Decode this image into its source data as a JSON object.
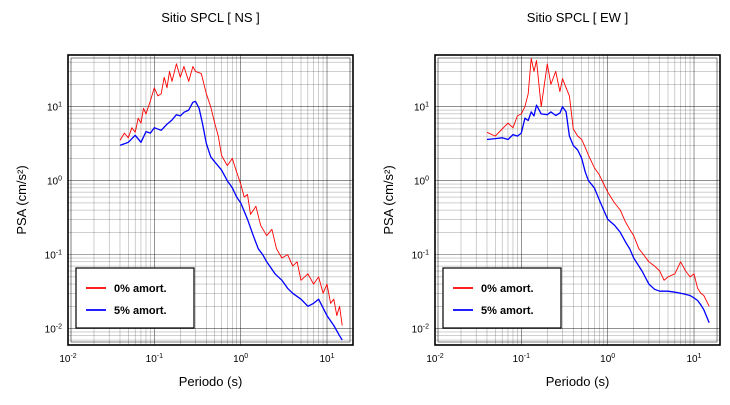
{
  "chart_data": [
    {
      "type": "line",
      "title": "Sitio SPCL [ NS ]",
      "xlabel": "Periodo (s)",
      "ylabel": "PSA (cm/s²)",
      "xscale": "log",
      "yscale": "log",
      "xlim": [
        0.01,
        20
      ],
      "ylim": [
        0.006,
        50
      ],
      "grid": true,
      "legend_placement": "bottom-left",
      "x_ticks": [
        "10^-2",
        "10^-1",
        "10^0",
        "10^1"
      ],
      "y_ticks": [
        "10^-2",
        "10^-1",
        "10^0",
        "10^1"
      ],
      "series": [
        {
          "name": "0% amort.",
          "color": "#ff0000",
          "x": [
            0.04,
            0.045,
            0.05,
            0.055,
            0.06,
            0.065,
            0.07,
            0.075,
            0.08,
            0.09,
            0.1,
            0.11,
            0.12,
            0.13,
            0.14,
            0.15,
            0.16,
            0.18,
            0.2,
            0.22,
            0.25,
            0.28,
            0.3,
            0.35,
            0.4,
            0.45,
            0.5,
            0.55,
            0.6,
            0.7,
            0.8,
            0.9,
            1.0,
            1.1,
            1.2,
            1.3,
            1.5,
            1.7,
            2.0,
            2.3,
            2.6,
            3.0,
            3.5,
            4.0,
            4.5,
            5.0,
            6.0,
            7.0,
            8.0,
            9.0,
            10,
            11,
            12,
            13,
            14,
            15
          ],
          "y": [
            3.5,
            4.4,
            3.8,
            5.2,
            4.5,
            7.0,
            6.0,
            9.5,
            8.0,
            12,
            18,
            14,
            15,
            25,
            18,
            30,
            22,
            38,
            25,
            35,
            22,
            35,
            30,
            28,
            15,
            10,
            6,
            4,
            2.2,
            1.6,
            2.0,
            1.3,
            0.9,
            0.6,
            0.65,
            0.35,
            0.45,
            0.25,
            0.18,
            0.22,
            0.12,
            0.09,
            0.1,
            0.07,
            0.08,
            0.045,
            0.055,
            0.04,
            0.05,
            0.03,
            0.04,
            0.022,
            0.025,
            0.015,
            0.02,
            0.011
          ]
        },
        {
          "name": "5% amort.",
          "color": "#0000ff",
          "x": [
            0.04,
            0.05,
            0.06,
            0.07,
            0.08,
            0.09,
            0.1,
            0.12,
            0.14,
            0.16,
            0.18,
            0.2,
            0.22,
            0.25,
            0.28,
            0.3,
            0.33,
            0.36,
            0.4,
            0.45,
            0.5,
            0.6,
            0.7,
            0.8,
            0.9,
            1.0,
            1.2,
            1.4,
            1.6,
            1.8,
            2.0,
            2.5,
            3.0,
            3.5,
            4.0,
            5.0,
            6.0,
            7.0,
            8.0,
            10,
            12,
            14,
            15
          ],
          "y": [
            3.0,
            3.3,
            4.1,
            3.3,
            4.6,
            4.4,
            5.2,
            4.8,
            5.8,
            6.6,
            7.8,
            7.5,
            8.4,
            9.0,
            11.5,
            11.8,
            9.5,
            6.0,
            3.2,
            2.1,
            1.8,
            1.4,
            1.0,
            0.8,
            0.6,
            0.5,
            0.3,
            0.18,
            0.12,
            0.1,
            0.08,
            0.055,
            0.045,
            0.035,
            0.03,
            0.025,
            0.02,
            0.022,
            0.025,
            0.015,
            0.011,
            0.008,
            0.007
          ]
        }
      ]
    },
    {
      "type": "line",
      "title": "Sitio SPCL [ EW ]",
      "xlabel": "Periodo (s)",
      "ylabel": "PSA (cm/s²)",
      "xscale": "log",
      "yscale": "log",
      "xlim": [
        0.01,
        20
      ],
      "ylim": [
        0.006,
        50
      ],
      "grid": true,
      "legend_placement": "bottom-left",
      "x_ticks": [
        "10^-2",
        "10^-1",
        "10^0",
        "10^1"
      ],
      "y_ticks": [
        "10^-2",
        "10^-1",
        "10^0",
        "10^1"
      ],
      "series": [
        {
          "name": "0% amort.",
          "color": "#ff0000",
          "x": [
            0.04,
            0.05,
            0.06,
            0.07,
            0.08,
            0.09,
            0.1,
            0.11,
            0.12,
            0.13,
            0.14,
            0.15,
            0.17,
            0.2,
            0.22,
            0.25,
            0.28,
            0.3,
            0.33,
            0.36,
            0.4,
            0.45,
            0.5,
            0.55,
            0.6,
            0.7,
            0.8,
            0.9,
            1.0,
            1.2,
            1.4,
            1.6,
            1.8,
            2.0,
            2.3,
            2.6,
            3.0,
            3.5,
            4.0,
            4.5,
            5.0,
            6.0,
            7.0,
            8.0,
            9.0,
            10,
            11,
            12,
            13,
            15
          ],
          "y": [
            4.5,
            4.0,
            5.0,
            6.0,
            5.2,
            7.5,
            8.0,
            10,
            15,
            45,
            30,
            42,
            10,
            38,
            20,
            30,
            16,
            24,
            18,
            14,
            5,
            4,
            3.6,
            2.8,
            2.2,
            1.5,
            1.2,
            0.9,
            0.7,
            0.5,
            0.4,
            0.28,
            0.22,
            0.18,
            0.12,
            0.1,
            0.08,
            0.07,
            0.06,
            0.045,
            0.05,
            0.055,
            0.08,
            0.06,
            0.05,
            0.055,
            0.035,
            0.03,
            0.028,
            0.02
          ]
        },
        {
          "name": "5% amort.",
          "color": "#0000ff",
          "x": [
            0.04,
            0.05,
            0.06,
            0.07,
            0.08,
            0.09,
            0.1,
            0.11,
            0.12,
            0.13,
            0.14,
            0.15,
            0.17,
            0.2,
            0.22,
            0.25,
            0.28,
            0.3,
            0.33,
            0.36,
            0.4,
            0.45,
            0.5,
            0.55,
            0.6,
            0.7,
            0.8,
            0.9,
            1.0,
            1.2,
            1.4,
            1.6,
            1.8,
            2.0,
            2.5,
            3.0,
            3.5,
            4.0,
            5.0,
            6.0,
            7.0,
            8.0,
            9.0,
            10,
            11,
            12,
            13,
            15
          ],
          "y": [
            3.6,
            3.7,
            3.8,
            3.6,
            4.2,
            4.0,
            4.4,
            7.0,
            6.5,
            8.5,
            7.5,
            10.5,
            8.0,
            7.8,
            8.5,
            7.6,
            8.2,
            10.0,
            8.5,
            4.0,
            3.0,
            2.6,
            2.0,
            1.3,
            1.0,
            0.8,
            0.55,
            0.4,
            0.3,
            0.25,
            0.2,
            0.15,
            0.12,
            0.09,
            0.06,
            0.04,
            0.034,
            0.032,
            0.032,
            0.031,
            0.03,
            0.029,
            0.028,
            0.026,
            0.024,
            0.021,
            0.018,
            0.012
          ]
        }
      ]
    }
  ]
}
